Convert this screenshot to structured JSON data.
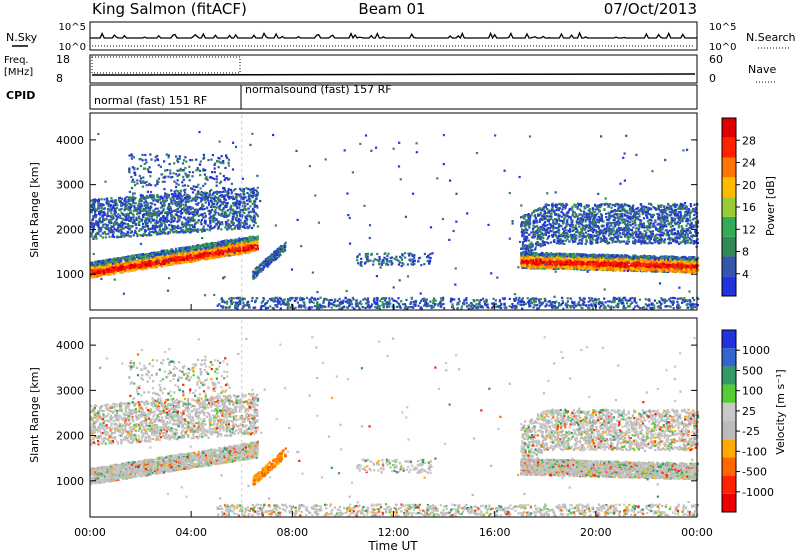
{
  "header": {
    "station": "King Salmon (fitACF)",
    "beam": "Beam 01",
    "date": "07/Oct/2013"
  },
  "strips": {
    "nsky_label": "N.Sky",
    "nsearch_label": "N.Search",
    "freq_label_1": "Freq.",
    "freq_label_2": "[MHz]",
    "nave_label": "Nave",
    "cpid_label": "CPID",
    "noise_left_ticks": [
      "10^5",
      "10^0"
    ],
    "noise_right_ticks": [
      "10^5",
      "10^0"
    ],
    "freq_ticks": [
      "18",
      "8"
    ],
    "nave_ticks": [
      "60",
      "0"
    ],
    "cpid_modes": [
      "normal (fast) 151 RF",
      "normalsound (fast) 157 RF"
    ]
  },
  "colors": {
    "power": [
      "#2233dd",
      "#3355aa",
      "#338855",
      "#33aa55",
      "#99cc33",
      "#ffbb00",
      "#ff7700",
      "#ff2200",
      "#dd0000"
    ],
    "velocity": [
      "#2233dd",
      "#3366cc",
      "#339966",
      "#55cc33",
      "#c8c8c8",
      "#bbbbbb",
      "#ffaa00",
      "#ff6600",
      "#ff2200",
      "#ee0000"
    ]
  },
  "chart_data": [
    {
      "type": "heatmap",
      "panel": "power",
      "ylabel": "Slant Range [km]",
      "xlabel": "Time UT",
      "x_ticks": [
        "00:00",
        "04:00",
        "08:00",
        "12:00",
        "16:00",
        "20:00",
        "00:00"
      ],
      "y_ticks": [
        1000,
        2000,
        3000,
        4000
      ],
      "xlim_hours": [
        0,
        24
      ],
      "ylim_km": [
        200,
        4600
      ],
      "colorbar_label": "Power [dB]",
      "colorbar_ticks": [
        4,
        8,
        12,
        16,
        20,
        24,
        28
      ],
      "features": [
        {
          "start_h": 0.0,
          "end_h": 6.5,
          "range_start_km": 1000,
          "range_end_km": 1600,
          "description": "E/F-region band rising in range"
        },
        {
          "start_h": 0.0,
          "end_h": 6.5,
          "range_start_km": 1800,
          "range_end_km": 2700,
          "description": "upper F-region scatter"
        },
        {
          "start_h": 17.0,
          "end_h": 24.0,
          "range_start_km": 1300,
          "range_end_km": 1200,
          "description": "strong band after 17 UT"
        },
        {
          "start_h": 17.0,
          "end_h": 24.0,
          "range_start_km": 1900,
          "range_end_km": 2600,
          "description": "upper band after 17 UT"
        }
      ]
    },
    {
      "type": "heatmap",
      "panel": "velocity",
      "ylabel": "Slant Range [km]",
      "xlabel": "Time UT",
      "x_ticks": [
        "00:00",
        "04:00",
        "08:00",
        "12:00",
        "16:00",
        "20:00",
        "00:00"
      ],
      "y_ticks": [
        1000,
        2000,
        3000,
        4000
      ],
      "xlim_hours": [
        0,
        24
      ],
      "ylim_km": [
        200,
        4600
      ],
      "colorbar_label": "Velocity [m s⁻¹]",
      "colorbar_ticks": [
        1000,
        500,
        100,
        25,
        -25,
        -100,
        -500,
        -1000
      ]
    }
  ]
}
